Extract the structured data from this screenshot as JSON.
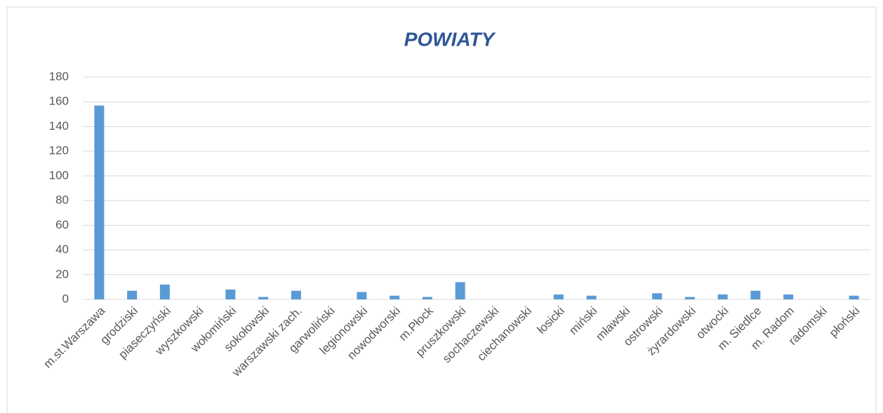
{
  "chart_data": {
    "type": "bar",
    "title": "POWIATY",
    "categories": [
      "m.st.Warszawa",
      "grodziski",
      "piaseczyński",
      "wyszkowski",
      "wołomiński",
      "sokołowski",
      "warszawski zach.",
      "garwoliński",
      "legionowski",
      "nowodworski",
      "m.Płock",
      "pruszkowski",
      "sochaczewski",
      "ciechanowski",
      "łosicki",
      "miński",
      "mławski",
      "ostrowski",
      "żyrardowski",
      "otwocki",
      "m. Siedlce",
      "m. Radom",
      "radomski",
      "płoński"
    ],
    "values": [
      157,
      7,
      12,
      0,
      8,
      2,
      7,
      0,
      6,
      3,
      2,
      14,
      0,
      0,
      4,
      3,
      0,
      5,
      2,
      4,
      7,
      4,
      0,
      3
    ],
    "color": "#5b9bd5",
    "ylim": [
      0,
      180
    ],
    "yticks": [
      0,
      20,
      40,
      60,
      80,
      100,
      120,
      140,
      160,
      180
    ],
    "grid": true
  }
}
